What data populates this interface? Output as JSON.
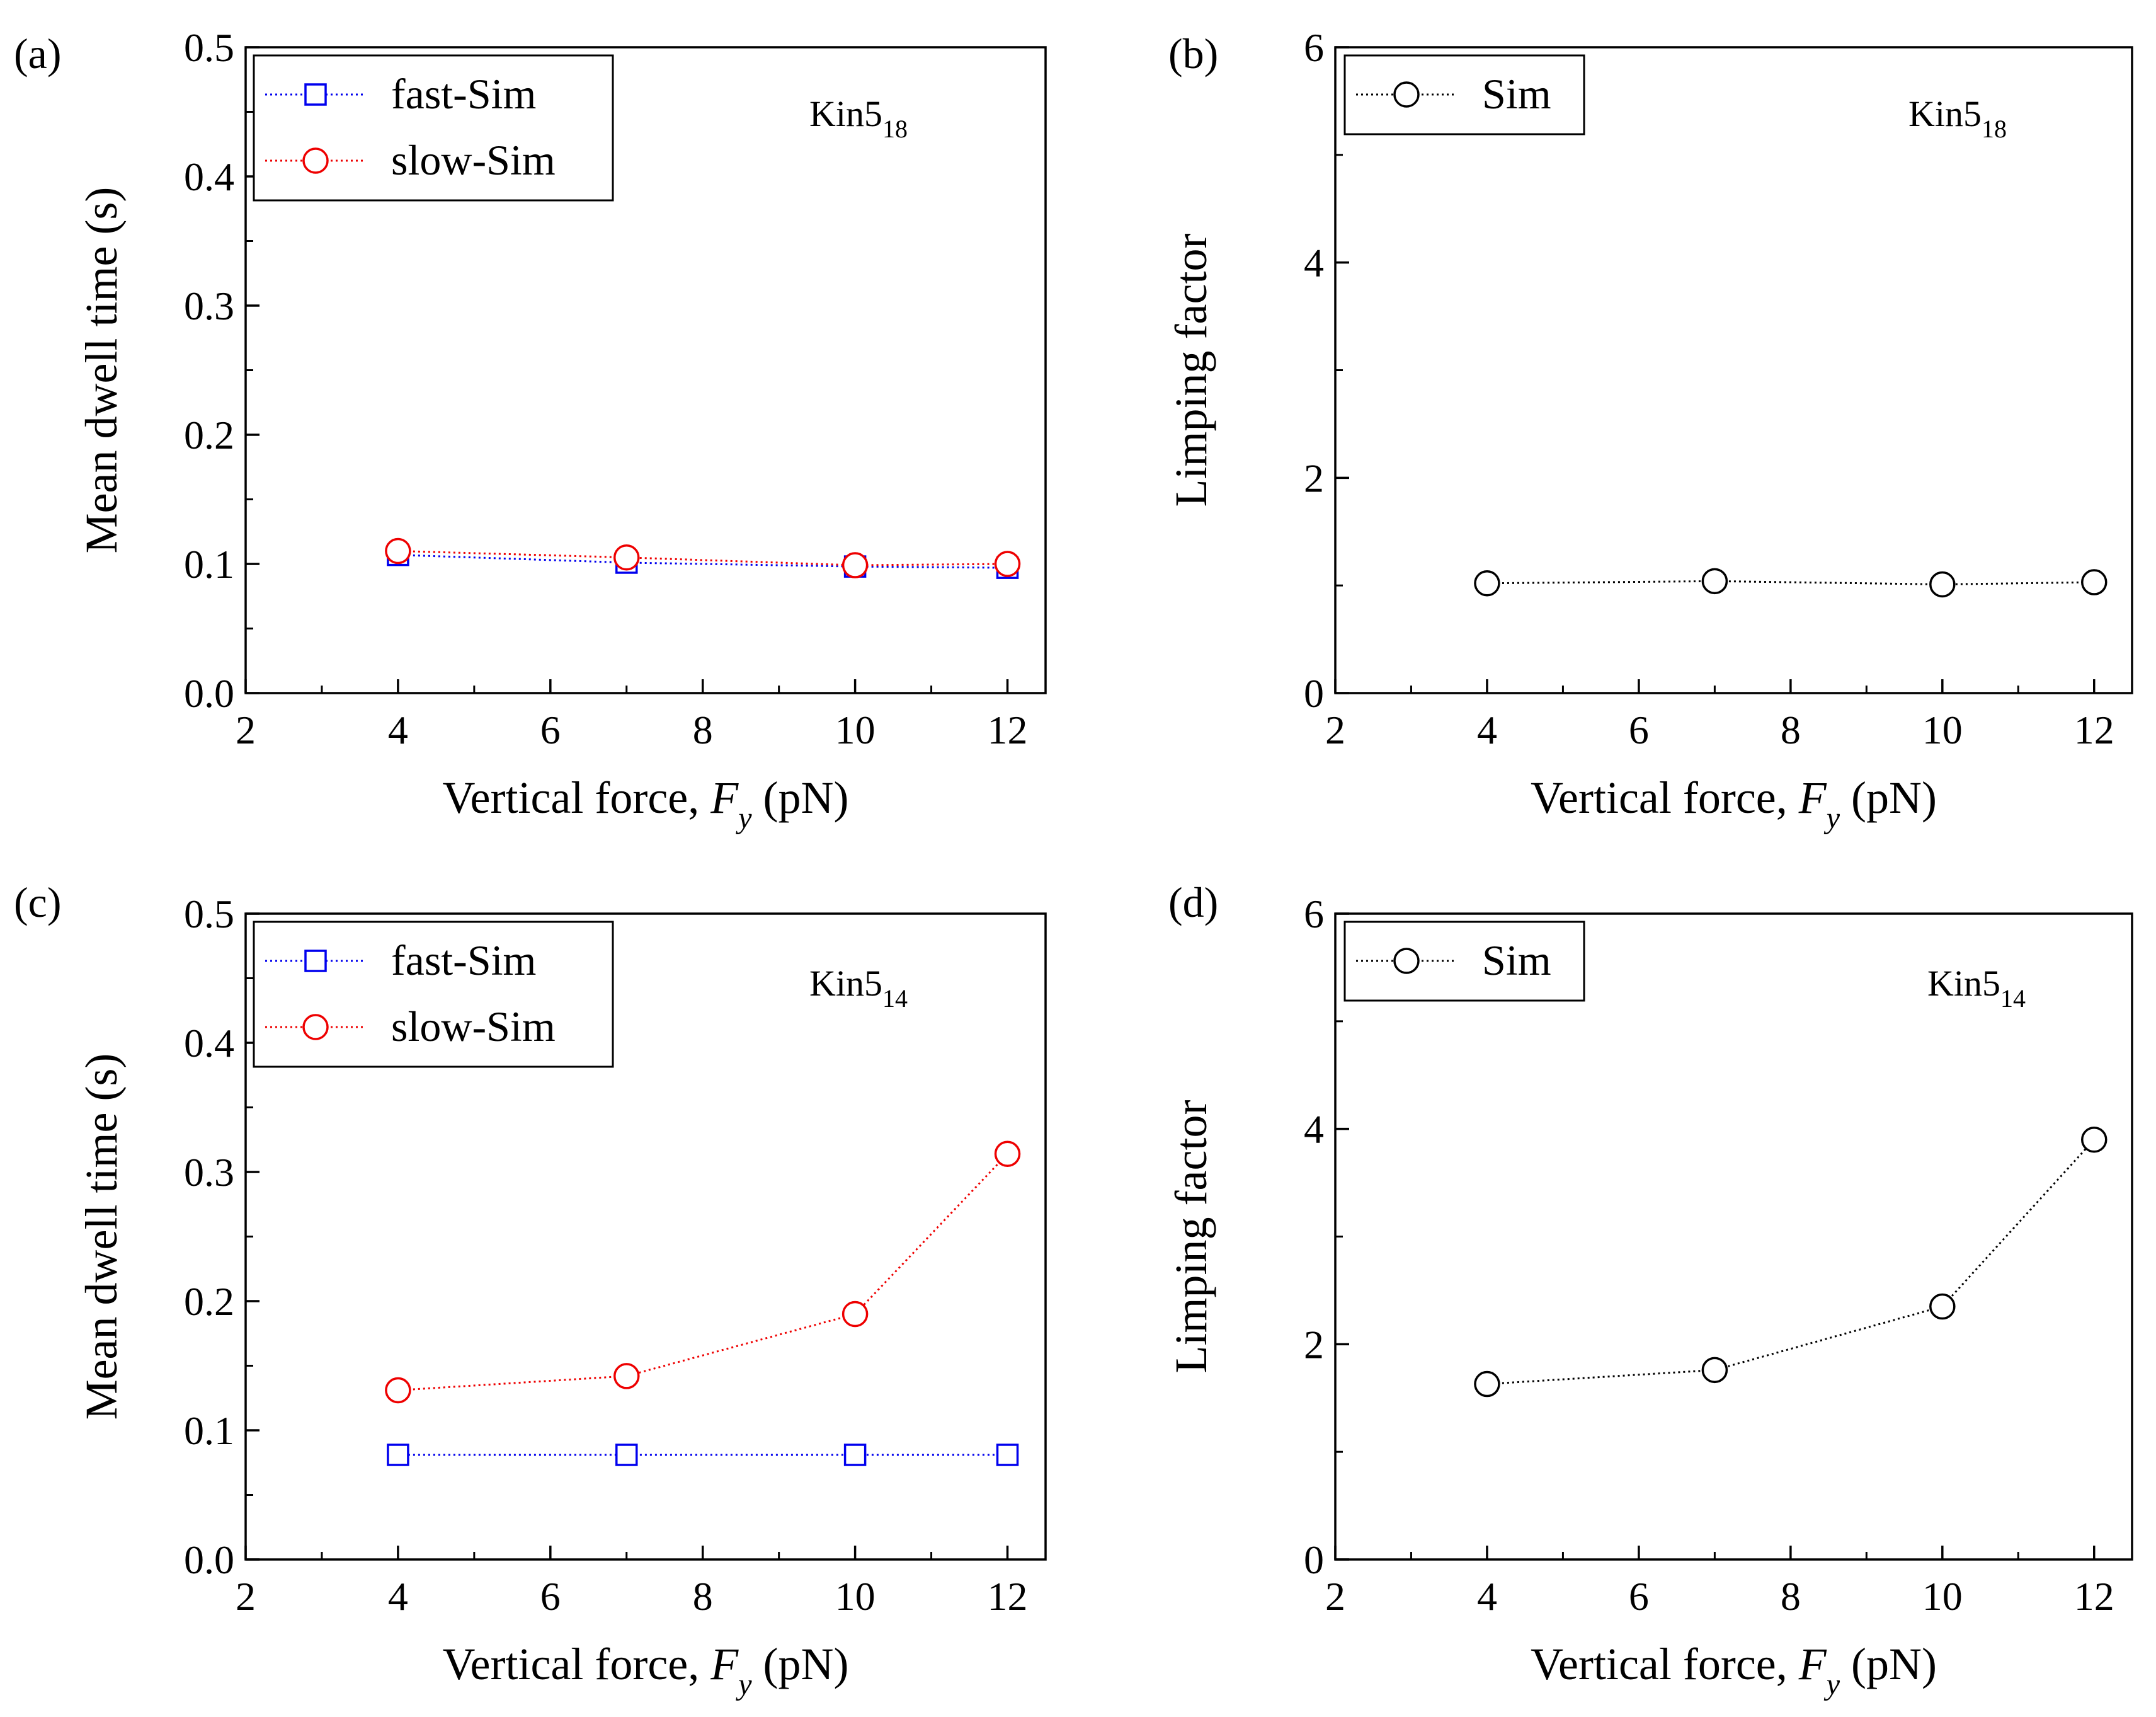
{
  "chart_data": [
    {
      "panel": "(a)",
      "type": "line",
      "annotation": {
        "base": "Kin5",
        "sub": "18"
      },
      "xlabel": {
        "pre": "Vertical force, ",
        "var": "F",
        "sub": "y",
        "post": " (pN)"
      },
      "ylabel": "Mean dwell time (s)",
      "xlim": [
        2,
        12.5
      ],
      "ylim": [
        0,
        0.5
      ],
      "xticks": [
        {
          "v": 2,
          "label": "2"
        },
        {
          "v": 4,
          "label": "4"
        },
        {
          "v": 6,
          "label": "6"
        },
        {
          "v": 8,
          "label": "8"
        },
        {
          "v": 10,
          "label": "10"
        },
        {
          "v": 12,
          "label": "12"
        }
      ],
      "yticks": [
        {
          "v": 0,
          "label": "0.0"
        },
        {
          "v": 0.1,
          "label": "0.1"
        },
        {
          "v": 0.2,
          "label": "0.2"
        },
        {
          "v": 0.3,
          "label": "0.3"
        },
        {
          "v": 0.4,
          "label": "0.4"
        },
        {
          "v": 0.5,
          "label": "0.5"
        }
      ],
      "x": [
        4,
        7,
        10,
        12
      ],
      "series": [
        {
          "name": "fast-Sim",
          "marker": "square",
          "color": "#0000ee",
          "values": [
            0.107,
            0.101,
            0.098,
            0.097
          ]
        },
        {
          "name": "slow-Sim",
          "marker": "circle",
          "color": "#ee0000",
          "values": [
            0.11,
            0.105,
            0.099,
            0.1
          ]
        }
      ]
    },
    {
      "panel": "(b)",
      "type": "line",
      "annotation": {
        "base": "Kin5",
        "sub": "18"
      },
      "xlabel": {
        "pre": "Vertical force, ",
        "var": "F",
        "sub": "y",
        "post": " (pN)"
      },
      "ylabel": "Limping factor",
      "xlim": [
        2,
        12.5
      ],
      "ylim": [
        0,
        6
      ],
      "xticks": [
        {
          "v": 2,
          "label": "2"
        },
        {
          "v": 4,
          "label": "4"
        },
        {
          "v": 6,
          "label": "6"
        },
        {
          "v": 8,
          "label": "8"
        },
        {
          "v": 10,
          "label": "10"
        },
        {
          "v": 12,
          "label": "12"
        }
      ],
      "yticks": [
        {
          "v": 0,
          "label": "0"
        },
        {
          "v": 2,
          "label": "2"
        },
        {
          "v": 4,
          "label": "4"
        },
        {
          "v": 6,
          "label": "6"
        }
      ],
      "x": [
        4,
        7,
        10,
        12
      ],
      "series": [
        {
          "name": "Sim",
          "marker": "circle",
          "color": "#000000",
          "values": [
            1.02,
            1.04,
            1.01,
            1.03
          ]
        }
      ]
    },
    {
      "panel": "(c)",
      "type": "line",
      "annotation": {
        "base": "Kin5",
        "sub": "14"
      },
      "xlabel": {
        "pre": "Vertical force, ",
        "var": "F",
        "sub": "y",
        "post": " (pN)"
      },
      "ylabel": "Mean dwell time (s)",
      "xlim": [
        2,
        12.5
      ],
      "ylim": [
        0,
        0.5
      ],
      "xticks": [
        {
          "v": 2,
          "label": "2"
        },
        {
          "v": 4,
          "label": "4"
        },
        {
          "v": 6,
          "label": "6"
        },
        {
          "v": 8,
          "label": "8"
        },
        {
          "v": 10,
          "label": "10"
        },
        {
          "v": 12,
          "label": "12"
        }
      ],
      "yticks": [
        {
          "v": 0,
          "label": "0.0"
        },
        {
          "v": 0.1,
          "label": "0.1"
        },
        {
          "v": 0.2,
          "label": "0.2"
        },
        {
          "v": 0.3,
          "label": "0.3"
        },
        {
          "v": 0.4,
          "label": "0.4"
        },
        {
          "v": 0.5,
          "label": "0.5"
        }
      ],
      "x": [
        4,
        7,
        10,
        12
      ],
      "series": [
        {
          "name": "fast-Sim",
          "marker": "square",
          "color": "#0000ee",
          "values": [
            0.081,
            0.081,
            0.081,
            0.081
          ]
        },
        {
          "name": "slow-Sim",
          "marker": "circle",
          "color": "#ee0000",
          "values": [
            0.131,
            0.142,
            0.19,
            0.314
          ]
        }
      ]
    },
    {
      "panel": "(d)",
      "type": "line",
      "annotation": {
        "base": "Kin5",
        "sub": "14"
      },
      "xlabel": {
        "pre": "Vertical force, ",
        "var": "F",
        "sub": "y",
        "post": " (pN)"
      },
      "ylabel": "Limping factor",
      "xlim": [
        2,
        12.5
      ],
      "ylim": [
        0,
        6
      ],
      "xticks": [
        {
          "v": 2,
          "label": "2"
        },
        {
          "v": 4,
          "label": "4"
        },
        {
          "v": 6,
          "label": "6"
        },
        {
          "v": 8,
          "label": "8"
        },
        {
          "v": 10,
          "label": "10"
        },
        {
          "v": 12,
          "label": "12"
        }
      ],
      "yticks": [
        {
          "v": 0,
          "label": "0"
        },
        {
          "v": 2,
          "label": "2"
        },
        {
          "v": 4,
          "label": "4"
        },
        {
          "v": 6,
          "label": "6"
        }
      ],
      "x": [
        4,
        7,
        10,
        12
      ],
      "series": [
        {
          "name": "Sim",
          "marker": "circle",
          "color": "#000000",
          "values": [
            1.63,
            1.76,
            2.35,
            3.9
          ]
        }
      ]
    }
  ]
}
